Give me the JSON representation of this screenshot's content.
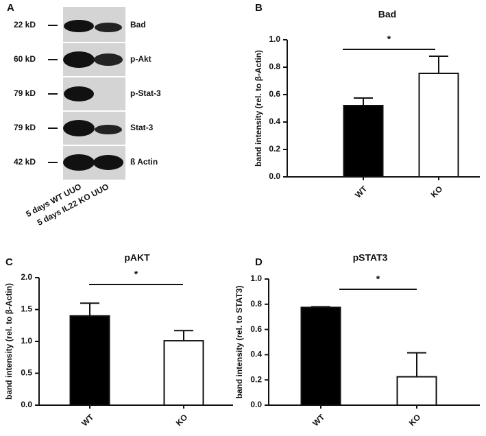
{
  "blot": {
    "panel": "A",
    "bands": [
      {
        "size": "22 kD",
        "label": "Bad"
      },
      {
        "size": "60 kD",
        "label": "p-Akt"
      },
      {
        "size": "79 kD",
        "label": "p-Stat-3"
      },
      {
        "size": "79 kD",
        "label": "Stat-3"
      },
      {
        "size": "42 kD",
        "label": "ß Actin"
      }
    ],
    "lanes": [
      "5 days WT UUO",
      "5 days IL22 KO UUO"
    ]
  },
  "chart_data": [
    {
      "panel": "B",
      "type": "bar",
      "title": "Bad",
      "ylabel": "band intensity  (rel. to β-Actin)",
      "categories": [
        "WT",
        "KO"
      ],
      "values": [
        0.52,
        0.755
      ],
      "errors": [
        0.055,
        0.125
      ],
      "colors": [
        "#000000",
        "#ffffff"
      ],
      "ylim": [
        0,
        1
      ],
      "yticks": [
        {
          "value": 0,
          "label": "0.0"
        },
        0.2,
        0.4,
        0.6,
        0.8,
        {
          "value": 1,
          "label": "1.0"
        }
      ],
      "significance": "*"
    },
    {
      "panel": "C",
      "type": "bar",
      "title": "pAKT",
      "ylabel": "band intensity  (rel. to β-Actin)",
      "categories": [
        "WT",
        "KO"
      ],
      "values": [
        1.4,
        1.01
      ],
      "errors": [
        0.2,
        0.16
      ],
      "colors": [
        "#000000",
        "#ffffff"
      ],
      "ylim": [
        0,
        2
      ],
      "yticks": [
        {
          "value": 0,
          "label": "0.0"
        },
        0.5,
        {
          "value": 1,
          "label": "1.0"
        },
        1.5,
        {
          "value": 2,
          "label": "2.0"
        }
      ],
      "significance": "*"
    },
    {
      "panel": "D",
      "type": "bar",
      "title": "pSTAT3",
      "ylabel": "band intensity  (rel. to STAT3)",
      "categories": [
        "WT",
        "KO"
      ],
      "values": [
        0.775,
        0.225
      ],
      "errors": [
        0.005,
        0.19
      ],
      "colors": [
        "#000000",
        "#ffffff"
      ],
      "ylim": [
        0,
        1
      ],
      "yticks": [
        {
          "value": 0,
          "label": "0.0"
        },
        0.2,
        0.4,
        0.6,
        0.8,
        {
          "value": 1,
          "label": "1.0"
        }
      ],
      "significance": "*"
    }
  ]
}
